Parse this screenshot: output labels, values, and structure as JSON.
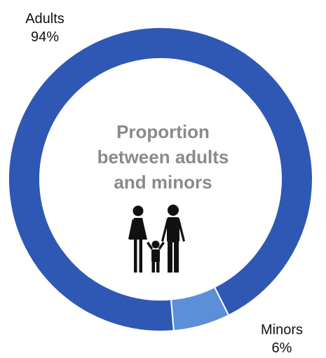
{
  "chart_data": {
    "type": "pie",
    "variant": "donut",
    "title": "Proportion between adults and minors",
    "categories": [
      "Adults",
      "Minors"
    ],
    "values": [
      94,
      6
    ],
    "value_labels": [
      "94%",
      "6%"
    ],
    "colors": [
      "#2E58B4",
      "#5B8FD8"
    ],
    "legend": "none"
  },
  "center": {
    "title_lines": [
      "Proportion",
      "between adults",
      "and minors"
    ],
    "icon": "family-icon"
  }
}
